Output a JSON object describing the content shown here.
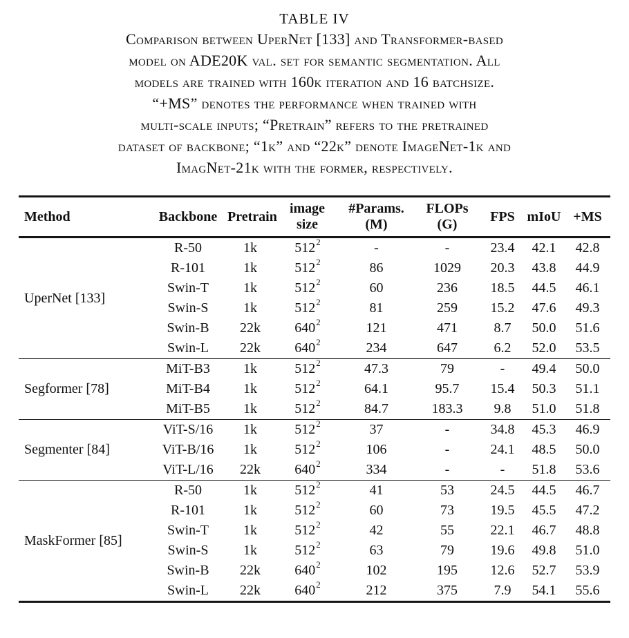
{
  "caption": {
    "label": "TABLE IV",
    "lines": [
      "Comparison between UperNet [133] and Transformer-based",
      "model on ADE20K val. set for semantic segmentation. All",
      "models are trained with 160k iteration and 16 batchsize.",
      "“+MS” denotes the performance when trained with",
      "multi-scale inputs; “Pretrain” refers to the pretrained",
      "dataset of backbone; “1k” and “22k” denote ImageNet-1k and",
      "ImagNet-21k with the former, respectively."
    ]
  },
  "table": {
    "header_ids": [
      "method",
      "backbone",
      "pretrain",
      "image-size",
      "params",
      "flops",
      "fps",
      "miou",
      "plus-ms"
    ],
    "headers": [
      [
        "Method"
      ],
      [
        "Backbone"
      ],
      [
        "Pretrain"
      ],
      [
        "image",
        "size"
      ],
      [
        "#Params.",
        "(M)"
      ],
      [
        "FLOPs",
        "(G)"
      ],
      [
        "FPS"
      ],
      [
        "mIoU"
      ],
      [
        "+MS"
      ]
    ],
    "groups": [
      {
        "method": "UperNet [133]",
        "rows": [
          {
            "backbone": "R-50",
            "pretrain": "1k",
            "size": "512",
            "size_exp": "2",
            "params": "-",
            "flops": "-",
            "fps": "23.4",
            "miou": "42.1",
            "plus_ms": "42.8"
          },
          {
            "backbone": "R-101",
            "pretrain": "1k",
            "size": "512",
            "size_exp": "2",
            "params": "86",
            "flops": "1029",
            "fps": "20.3",
            "miou": "43.8",
            "plus_ms": "44.9"
          },
          {
            "backbone": "Swin-T",
            "pretrain": "1k",
            "size": "512",
            "size_exp": "2",
            "params": "60",
            "flops": "236",
            "fps": "18.5",
            "miou": "44.5",
            "plus_ms": "46.1"
          },
          {
            "backbone": "Swin-S",
            "pretrain": "1k",
            "size": "512",
            "size_exp": "2",
            "params": "81",
            "flops": "259",
            "fps": "15.2",
            "miou": "47.6",
            "plus_ms": "49.3"
          },
          {
            "backbone": "Swin-B",
            "pretrain": "22k",
            "size": "640",
            "size_exp": "2",
            "params": "121",
            "flops": "471",
            "fps": "8.7",
            "miou": "50.0",
            "plus_ms": "51.6"
          },
          {
            "backbone": "Swin-L",
            "pretrain": "22k",
            "size": "640",
            "size_exp": "2",
            "params": "234",
            "flops": "647",
            "fps": "6.2",
            "miou": "52.0",
            "plus_ms": "53.5"
          }
        ]
      },
      {
        "method": "Segformer [78]",
        "rows": [
          {
            "backbone": "MiT-B3",
            "pretrain": "1k",
            "size": "512",
            "size_exp": "2",
            "params": "47.3",
            "flops": "79",
            "fps": "-",
            "miou": "49.4",
            "plus_ms": "50.0"
          },
          {
            "backbone": "MiT-B4",
            "pretrain": "1k",
            "size": "512",
            "size_exp": "2",
            "params": "64.1",
            "flops": "95.7",
            "fps": "15.4",
            "miou": "50.3",
            "plus_ms": "51.1"
          },
          {
            "backbone": "MiT-B5",
            "pretrain": "1k",
            "size": "512",
            "size_exp": "2",
            "params": "84.7",
            "flops": "183.3",
            "fps": "9.8",
            "miou": "51.0",
            "plus_ms": "51.8"
          }
        ]
      },
      {
        "method": "Segmenter [84]",
        "rows": [
          {
            "backbone": "ViT-S/16",
            "pretrain": "1k",
            "size": "512",
            "size_exp": "2",
            "params": "37",
            "flops": "-",
            "fps": "34.8",
            "miou": "45.3",
            "plus_ms": "46.9"
          },
          {
            "backbone": "ViT-B/16",
            "pretrain": "1k",
            "size": "512",
            "size_exp": "2",
            "params": "106",
            "flops": "-",
            "fps": "24.1",
            "miou": "48.5",
            "plus_ms": "50.0"
          },
          {
            "backbone": "ViT-L/16",
            "pretrain": "22k",
            "size": "640",
            "size_exp": "2",
            "params": "334",
            "flops": "-",
            "fps": "-",
            "miou": "51.8",
            "plus_ms": "53.6"
          }
        ]
      },
      {
        "method": "MaskFormer [85]",
        "rows": [
          {
            "backbone": "R-50",
            "pretrain": "1k",
            "size": "512",
            "size_exp": "2",
            "params": "41",
            "flops": "53",
            "fps": "24.5",
            "miou": "44.5",
            "plus_ms": "46.7"
          },
          {
            "backbone": "R-101",
            "pretrain": "1k",
            "size": "512",
            "size_exp": "2",
            "params": "60",
            "flops": "73",
            "fps": "19.5",
            "miou": "45.5",
            "plus_ms": "47.2"
          },
          {
            "backbone": "Swin-T",
            "pretrain": "1k",
            "size": "512",
            "size_exp": "2",
            "params": "42",
            "flops": "55",
            "fps": "22.1",
            "miou": "46.7",
            "plus_ms": "48.8"
          },
          {
            "backbone": "Swin-S",
            "pretrain": "1k",
            "size": "512",
            "size_exp": "2",
            "params": "63",
            "flops": "79",
            "fps": "19.6",
            "miou": "49.8",
            "plus_ms": "51.0"
          },
          {
            "backbone": "Swin-B",
            "pretrain": "22k",
            "size": "640",
            "size_exp": "2",
            "params": "102",
            "flops": "195",
            "fps": "12.6",
            "miou": "52.7",
            "plus_ms": "53.9"
          },
          {
            "backbone": "Swin-L",
            "pretrain": "22k",
            "size": "640",
            "size_exp": "2",
            "params": "212",
            "flops": "375",
            "fps": "7.9",
            "miou": "54.1",
            "plus_ms": "55.6"
          }
        ]
      }
    ]
  }
}
